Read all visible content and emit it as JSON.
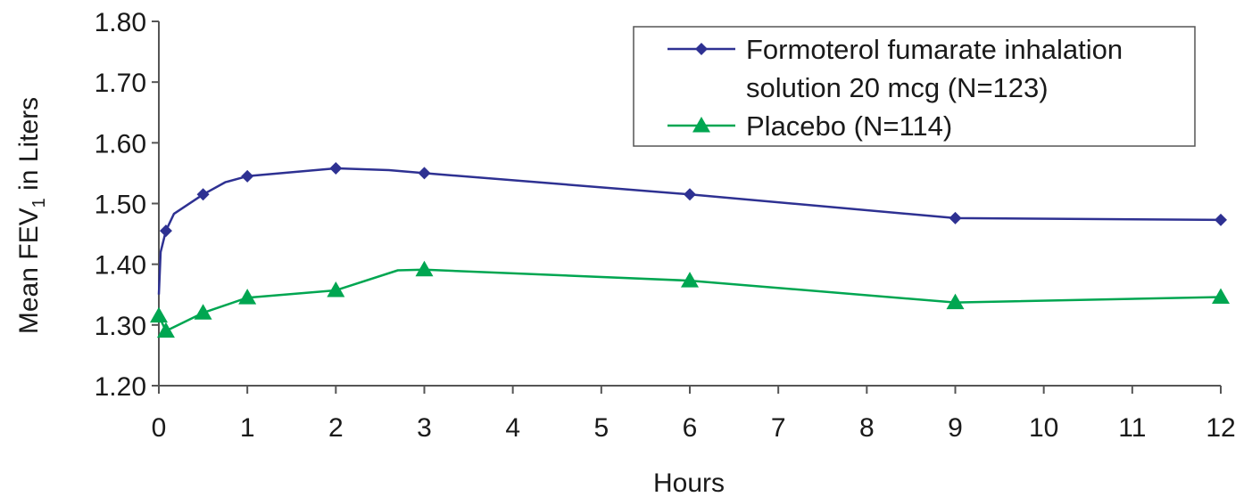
{
  "chart_data": {
    "type": "line",
    "title": "",
    "xlabel": "Hours",
    "ylabel": "Mean FEV",
    "ylabel_subscript": "1",
    "ylabel_suffix": " in Liters",
    "xlim": [
      0,
      12
    ],
    "ylim": [
      1.2,
      1.8
    ],
    "x_ticks": [
      "0",
      "1",
      "2",
      "3",
      "4",
      "5",
      "6",
      "7",
      "8",
      "9",
      "10",
      "11",
      "12"
    ],
    "y_ticks": [
      "1.20",
      "1.30",
      "1.40",
      "1.50",
      "1.60",
      "1.70",
      "1.80"
    ],
    "grid": false,
    "legend_position": "top-right",
    "series": [
      {
        "name_lines": [
          "Formoterol fumarate inhalation",
          "solution 20 mcg (N=123)"
        ],
        "color": "#2e3192",
        "marker": "diamond",
        "line_x": [
          0,
          0.02,
          0.08,
          0.17,
          0.5,
          0.75,
          1,
          2,
          2.6,
          3,
          6,
          9,
          12
        ],
        "line_y": [
          1.35,
          1.42,
          1.455,
          1.483,
          1.515,
          1.535,
          1.545,
          1.558,
          1.555,
          1.55,
          1.515,
          1.476,
          1.473
        ],
        "marker_x": [
          0.08,
          0.5,
          1,
          2,
          3,
          6,
          9,
          12
        ],
        "marker_y": [
          1.455,
          1.515,
          1.545,
          1.558,
          1.55,
          1.515,
          1.476,
          1.473
        ]
      },
      {
        "name_lines": [
          "Placebo (N=114)"
        ],
        "color": "#00a651",
        "marker": "triangle",
        "line_x": [
          0,
          0.08,
          0.5,
          1,
          2,
          2.7,
          3,
          6,
          9,
          12
        ],
        "line_y": [
          1.315,
          1.29,
          1.32,
          1.345,
          1.357,
          1.39,
          1.391,
          1.373,
          1.337,
          1.346
        ],
        "marker_x": [
          0,
          0.08,
          0.5,
          1,
          2,
          3,
          6,
          9,
          12
        ],
        "marker_y": [
          1.315,
          1.29,
          1.32,
          1.345,
          1.357,
          1.391,
          1.373,
          1.337,
          1.346
        ]
      }
    ]
  }
}
